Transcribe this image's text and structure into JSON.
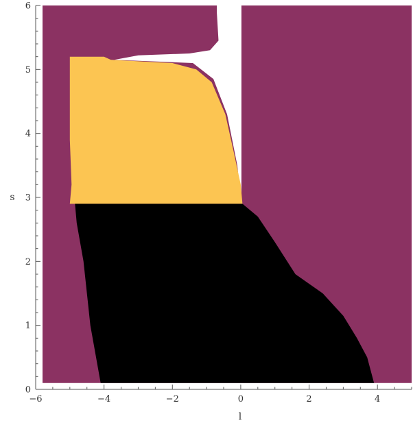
{
  "chart_data": {
    "type": "heatmap",
    "title": "",
    "xlabel": "l",
    "ylabel": "s",
    "xlim": [
      -6,
      5
    ],
    "ylim": [
      0,
      6
    ],
    "x_ticks": [
      -6,
      -4,
      -2,
      0,
      2,
      4
    ],
    "x_tick_labels": [
      "−6",
      "−4",
      "−2",
      "0",
      "2",
      "4"
    ],
    "y_ticks": [
      0,
      1,
      2,
      3,
      4,
      5,
      6
    ],
    "y_tick_labels": [
      "0",
      "1",
      "2",
      "3",
      "4",
      "5",
      "6"
    ],
    "grid": false,
    "legend": "none",
    "colors": {
      "purple": "#8b3262",
      "yellow": "#fcc552",
      "black": "#000000",
      "white": "#ffffff",
      "frame": "#555555"
    },
    "regions": [
      {
        "color_key": "purple",
        "description": "background region",
        "polygon": [
          [
            -5.8,
            0.1
          ],
          [
            5,
            0.1
          ],
          [
            5,
            6
          ],
          [
            -5.8,
            6
          ]
        ]
      },
      {
        "color_key": "white",
        "description": "white gap region",
        "polygon": [
          [
            -0.7,
            6
          ],
          [
            0.02,
            6
          ],
          [
            0.02,
            2.9
          ],
          [
            -0.1,
            3.5
          ],
          [
            -0.4,
            4.3
          ],
          [
            -0.8,
            4.85
          ],
          [
            -1.4,
            5.1
          ],
          [
            -3.7,
            5.15
          ],
          [
            -3.0,
            5.22
          ],
          [
            -1.5,
            5.25
          ],
          [
            -0.9,
            5.3
          ],
          [
            -0.65,
            5.45
          ],
          [
            -0.7,
            5.9
          ]
        ]
      },
      {
        "color_key": "yellow",
        "description": "yellow region",
        "polygon": [
          [
            -5.0,
            2.9
          ],
          [
            0.05,
            2.9
          ],
          [
            0.0,
            3.2
          ],
          [
            -0.2,
            3.7
          ],
          [
            -0.45,
            4.3
          ],
          [
            -0.85,
            4.8
          ],
          [
            -1.3,
            5.0
          ],
          [
            -2.0,
            5.1
          ],
          [
            -3.8,
            5.15
          ],
          [
            -4.0,
            5.2
          ],
          [
            -5.0,
            5.2
          ],
          [
            -5.0,
            3.9
          ],
          [
            -4.95,
            3.2
          ]
        ]
      },
      {
        "color_key": "black",
        "description": "black region",
        "polygon": [
          [
            -4.85,
            2.9
          ],
          [
            0.05,
            2.9
          ],
          [
            0.5,
            2.7
          ],
          [
            1.0,
            2.3
          ],
          [
            1.6,
            1.8
          ],
          [
            2.4,
            1.5
          ],
          [
            3.0,
            1.15
          ],
          [
            3.4,
            0.8
          ],
          [
            3.7,
            0.5
          ],
          [
            3.9,
            0.1
          ],
          [
            -4.1,
            0.1
          ],
          [
            -4.4,
            1.0
          ],
          [
            -4.6,
            2.0
          ],
          [
            -4.8,
            2.6
          ]
        ]
      }
    ]
  }
}
